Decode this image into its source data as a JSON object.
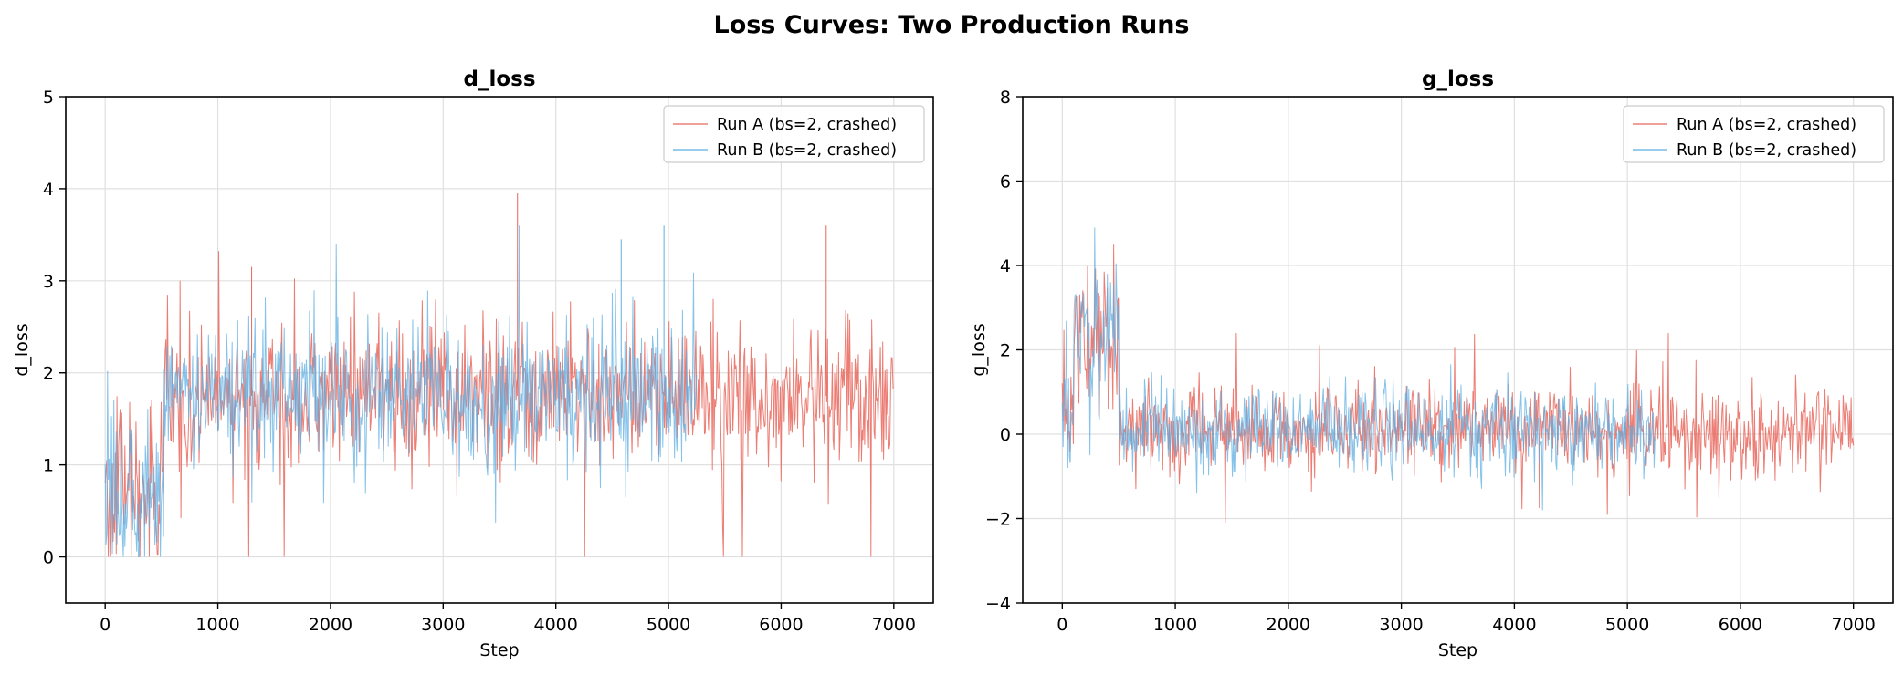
{
  "figure": {
    "title": "Loss Curves: Two Production Runs"
  },
  "colors": {
    "run_a": "#e8665c",
    "run_b": "#5dade2",
    "overlap": "#8fa0c8",
    "grid": "#e0e0e0"
  },
  "chart_data": [
    {
      "type": "line",
      "title": "d_loss",
      "xlabel": "Step",
      "ylabel": "d_loss",
      "xlim": [
        -350,
        7350
      ],
      "ylim": [
        -0.5,
        5
      ],
      "xticks": [
        0,
        1000,
        2000,
        3000,
        4000,
        5000,
        6000,
        7000
      ],
      "yticks": [
        0,
        1,
        2,
        3,
        4,
        5
      ],
      "grid": true,
      "legend": "top-right",
      "series": [
        {
          "name": "Run A (bs=2, crashed)",
          "color": "#e8665c",
          "x_range": [
            0,
            7000
          ],
          "noise_band": [
            {
              "x": [
                0,
                520
              ],
              "mean": 0.7,
              "std": 0.45,
              "min": 0.0,
              "max": 2.4
            },
            {
              "x": [
                520,
                7000
              ],
              "mean": 1.75,
              "std": 0.38,
              "min": 0.0,
              "max": 3.95
            }
          ],
          "notable_peaks": [
            {
              "x": 3660,
              "y": 3.95
            },
            {
              "x": 6400,
              "y": 3.6
            },
            {
              "x": 1300,
              "y": 3.15
            }
          ]
        },
        {
          "name": "Run B (bs=2, crashed)",
          "color": "#5dade2",
          "x_range": [
            0,
            5250
          ],
          "noise_band": [
            {
              "x": [
                0,
                520
              ],
              "mean": 0.65,
              "std": 0.45,
              "min": 0.0,
              "max": 2.4
            },
            {
              "x": [
                520,
                5250
              ],
              "mean": 1.75,
              "std": 0.38,
              "min": 0.0,
              "max": 3.6
            }
          ],
          "notable_peaks": [
            {
              "x": 4960,
              "y": 3.6
            },
            {
              "x": 4580,
              "y": 3.45
            }
          ]
        }
      ]
    },
    {
      "type": "line",
      "title": "g_loss",
      "xlabel": "Step",
      "ylabel": "g_loss",
      "xlim": [
        -350,
        7350
      ],
      "ylim": [
        -4,
        8
      ],
      "xticks": [
        0,
        1000,
        2000,
        3000,
        4000,
        5000,
        6000,
        7000
      ],
      "yticks": [
        -4,
        -2,
        0,
        2,
        4,
        6,
        8
      ],
      "grid": true,
      "legend": "top-right",
      "series": [
        {
          "name": "Run A (bs=2, crashed)",
          "color": "#e8665c",
          "x_range": [
            0,
            7000
          ],
          "noise_band": [
            {
              "x": [
                0,
                100
              ],
              "mean": 0.6,
              "std": 0.8,
              "min": -0.8,
              "max": 3.0
            },
            {
              "x": [
                100,
                500
              ],
              "mean": 2.3,
              "std": 0.9,
              "min": -0.5,
              "max": 4.5
            },
            {
              "x": [
                500,
                7000
              ],
              "mean": 0.1,
              "std": 0.5,
              "min": -2.1,
              "max": 2.4
            }
          ]
        },
        {
          "name": "Run B (bs=2, crashed)",
          "color": "#5dade2",
          "x_range": [
            0,
            5250
          ],
          "noise_band": [
            {
              "x": [
                0,
                100
              ],
              "mean": 0.5,
              "std": 0.8,
              "min": -0.8,
              "max": 3.0
            },
            {
              "x": [
                100,
                500
              ],
              "mean": 2.4,
              "std": 0.9,
              "min": -0.5,
              "max": 4.9
            },
            {
              "x": [
                500,
                5250
              ],
              "mean": 0.1,
              "std": 0.5,
              "min": -1.8,
              "max": 2.3
            }
          ]
        }
      ]
    }
  ]
}
